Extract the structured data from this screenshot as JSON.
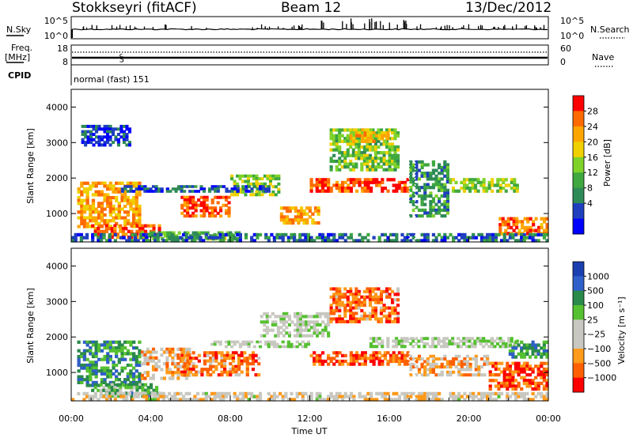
{
  "header": {
    "station": "Stokkseyri (fitACF)",
    "beam": "Beam 12",
    "date": "13/Dec/2012"
  },
  "top_panels": {
    "nsky_label": "N.Sky",
    "nsearch_label": "N.Search",
    "nsky_ticks": [
      "10^5",
      "10^0"
    ],
    "nsearch_ticks": [
      "10^5",
      "10^0"
    ],
    "freq_label_1": "Freq.",
    "freq_label_2": "[MHz]",
    "freq_ticks": [
      "18",
      "8"
    ],
    "nave_label": "Nave",
    "nave_ticks": [
      "60",
      "0"
    ],
    "cpid_label": "CPID",
    "cpid_value": "normal (fast) 151"
  },
  "chart_data": [
    {
      "type": "heatmap",
      "panel": "power",
      "ylabel": "Slant Range [km]",
      "xlabel": "",
      "ylim": [
        200,
        4500
      ],
      "yticks": [
        "1000",
        "2000",
        "3000",
        "4000"
      ],
      "colorbar_label": "Power [dB]",
      "colorbar_ticks": [
        "28",
        "24",
        "20",
        "16",
        "12",
        "8",
        "4"
      ],
      "colorbar_colors": [
        "#0000ff",
        "#1f3fbf",
        "#2e8b57",
        "#3fa83f",
        "#7fd22a",
        "#f0d000",
        "#ffa500",
        "#ff6a00",
        "#ff0000"
      ],
      "grid": false,
      "regions": [
        {
          "t": [
            0.3,
            3.5
          ],
          "r": [
            600,
            1900
          ],
          "level": 0.75
        },
        {
          "t": [
            1.0,
            4.5
          ],
          "r": [
            300,
            700
          ],
          "level": 0.9
        },
        {
          "t": [
            3.5,
            8.5
          ],
          "r": [
            250,
            500
          ],
          "level": 0.4
        },
        {
          "t": [
            5.5,
            8.0
          ],
          "r": [
            900,
            1500
          ],
          "level": 0.92
        },
        {
          "t": [
            8.0,
            10.5
          ],
          "r": [
            1500,
            2100
          ],
          "level": 0.5
        },
        {
          "t": [
            10.5,
            12.5
          ],
          "r": [
            700,
            1200
          ],
          "level": 0.75
        },
        {
          "t": [
            12.0,
            17.0
          ],
          "r": [
            1600,
            2000
          ],
          "level": 0.95
        },
        {
          "t": [
            13.0,
            16.5
          ],
          "r": [
            2200,
            3400
          ],
          "level": 0.45
        },
        {
          "t": [
            14.0,
            16.0
          ],
          "r": [
            3000,
            3400
          ],
          "level": 0.7
        },
        {
          "t": [
            17.0,
            19.0
          ],
          "r": [
            900,
            2500
          ],
          "level": 0.3
        },
        {
          "t": [
            19.0,
            22.5
          ],
          "r": [
            1600,
            2000
          ],
          "level": 0.5
        },
        {
          "t": [
            21.5,
            24.0
          ],
          "r": [
            400,
            900
          ],
          "level": 0.85
        },
        {
          "t": [
            0.0,
            24.0
          ],
          "r": [
            200,
            450
          ],
          "level": 0.2
        },
        {
          "t": [
            2.5,
            10.0
          ],
          "r": [
            1600,
            1800
          ],
          "level": 0.15
        },
        {
          "t": [
            0.5,
            3.0
          ],
          "r": [
            2900,
            3500
          ],
          "level": 0.1
        }
      ]
    },
    {
      "type": "heatmap",
      "panel": "velocity",
      "ylabel": "Slant Range [km]",
      "xlabel": "Time UT",
      "ylim": [
        200,
        4500
      ],
      "yticks": [
        "1000",
        "2000",
        "3000",
        "4000"
      ],
      "xticks": [
        "00:00",
        "04:00",
        "08:00",
        "12:00",
        "16:00",
        "20:00",
        "00:00"
      ],
      "colorbar_label": "Velocity [m s⁻¹]",
      "colorbar_ticks": [
        "1000",
        "500",
        "100",
        "25",
        "−25",
        "−100",
        "−500",
        "−1000"
      ],
      "colorbar_colors": [
        "#ff0000",
        "#ff6000",
        "#ff9a1a",
        "#c8c8c0",
        "#c8c8c0",
        "#55c030",
        "#2a8a4a",
        "#2f5fc8",
        "#1a3fb0"
      ],
      "grid": false,
      "regions": [
        {
          "t": [
            0.3,
            3.5
          ],
          "r": [
            600,
            1900
          ],
          "level": 0.75
        },
        {
          "t": [
            1.0,
            4.5
          ],
          "r": [
            300,
            700
          ],
          "level": 0.65
        },
        {
          "t": [
            3.5,
            6.0
          ],
          "r": [
            800,
            1700
          ],
          "level": 0.3
        },
        {
          "t": [
            5.5,
            9.5
          ],
          "r": [
            900,
            1600
          ],
          "level": 0.18
        },
        {
          "t": [
            7.0,
            12.0
          ],
          "r": [
            1700,
            1900
          ],
          "level": 0.5
        },
        {
          "t": [
            9.5,
            13.0
          ],
          "r": [
            2000,
            2700
          ],
          "level": 0.5
        },
        {
          "t": [
            12.0,
            17.0
          ],
          "r": [
            1200,
            1600
          ],
          "level": 0.12
        },
        {
          "t": [
            13.0,
            16.5
          ],
          "r": [
            2400,
            3400
          ],
          "level": 0.15
        },
        {
          "t": [
            15.0,
            22.5
          ],
          "r": [
            1700,
            2000
          ],
          "level": 0.5
        },
        {
          "t": [
            17.0,
            21.0
          ],
          "r": [
            900,
            1500
          ],
          "level": 0.3
        },
        {
          "t": [
            21.0,
            24.0
          ],
          "r": [
            500,
            1300
          ],
          "level": 0.1
        },
        {
          "t": [
            22.0,
            24.0
          ],
          "r": [
            1400,
            1900
          ],
          "level": 0.72
        },
        {
          "t": [
            0.0,
            24.0
          ],
          "r": [
            200,
            450
          ],
          "level": 0.4
        }
      ]
    }
  ]
}
